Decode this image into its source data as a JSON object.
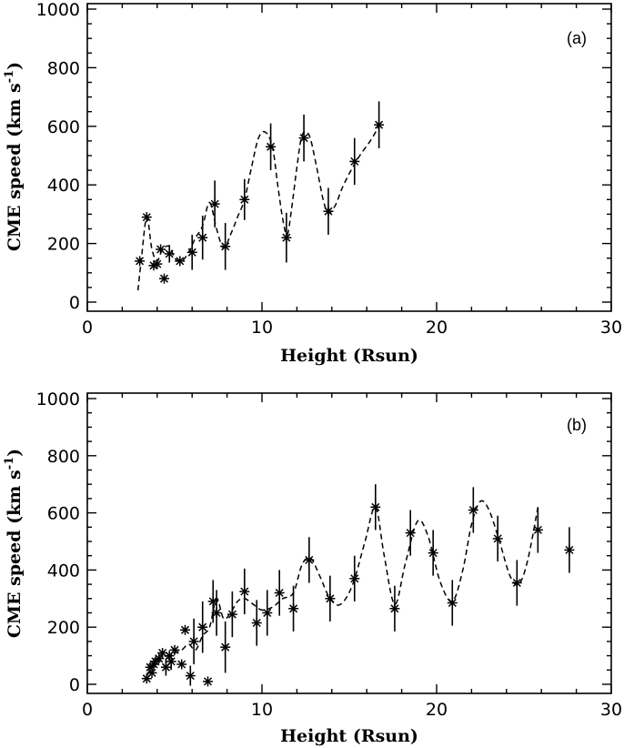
{
  "chart_data": [
    {
      "type": "scatter",
      "panel_label": "(a)",
      "xlabel": "Height (Rsun)",
      "ylabel_main": "CME speed (km s",
      "ylabel_sup": "-1",
      "ylabel_close": ")",
      "xlim": [
        0,
        30
      ],
      "ylim": [
        0,
        1000
      ],
      "xticks": [
        0,
        10,
        20,
        30
      ],
      "yticks": [
        0,
        200,
        400,
        600,
        800,
        1000
      ],
      "x": [
        3.0,
        3.4,
        3.8,
        4.0,
        4.2,
        4.4,
        4.7,
        5.3,
        6.0,
        6.6,
        7.3,
        7.9,
        9.0,
        10.5,
        11.4,
        12.4,
        13.8,
        15.3,
        16.7
      ],
      "y": [
        140,
        290,
        125,
        130,
        180,
        80,
        165,
        140,
        170,
        220,
        335,
        190,
        350,
        530,
        220,
        560,
        310,
        480,
        605
      ],
      "yerr": [
        0,
        0,
        0,
        0,
        0,
        0,
        30,
        0,
        60,
        75,
        80,
        80,
        70,
        80,
        85,
        80,
        80,
        80,
        80
      ],
      "fit_x": [
        2.9,
        3.1,
        3.4,
        3.7,
        4.0,
        4.3,
        4.7,
        5.0,
        5.4,
        5.8,
        6.2,
        6.6,
        7.0,
        7.4,
        7.8,
        8.2,
        8.6,
        9.0,
        9.4,
        9.8,
        10.2,
        10.6,
        10.9,
        11.2,
        11.45,
        11.7,
        12.0,
        12.3,
        12.7,
        13.1,
        13.5,
        13.8,
        14.2,
        14.6,
        15.1,
        15.6,
        16.2,
        16.7
      ],
      "fit_y": [
        40,
        150,
        290,
        180,
        140,
        180,
        190,
        150,
        140,
        170,
        220,
        260,
        340,
        250,
        185,
        230,
        290,
        350,
        460,
        560,
        580,
        530,
        400,
        280,
        230,
        320,
        460,
        570,
        570,
        470,
        350,
        305,
        330,
        390,
        450,
        500,
        550,
        600
      ]
    },
    {
      "type": "scatter",
      "panel_label": "(b)",
      "xlabel": "Height (Rsun)",
      "ylabel_main": "CME speed (km s",
      "ylabel_sup": "-1",
      "ylabel_close": ")",
      "xlim": [
        0,
        30
      ],
      "ylim": [
        0,
        1000
      ],
      "xticks": [
        0,
        10,
        20,
        30
      ],
      "yticks": [
        0,
        200,
        400,
        600,
        800,
        1000
      ],
      "x": [
        3.4,
        3.6,
        3.7,
        3.8,
        3.9,
        4.1,
        4.3,
        4.5,
        4.7,
        4.8,
        5.0,
        5.4,
        5.6,
        5.9,
        6.1,
        6.6,
        6.9,
        7.2,
        7.4,
        7.9,
        8.3,
        9.0,
        9.7,
        10.3,
        11.0,
        11.8,
        12.7,
        13.9,
        15.3,
        16.5,
        17.6,
        18.5,
        19.8,
        20.9,
        22.1,
        23.5,
        24.6,
        25.8,
        27.6
      ],
      "y": [
        20,
        60,
        40,
        70,
        80,
        90,
        110,
        60,
        100,
        80,
        120,
        70,
        190,
        30,
        150,
        200,
        10,
        290,
        250,
        130,
        245,
        325,
        215,
        250,
        320,
        265,
        435,
        300,
        370,
        620,
        265,
        530,
        460,
        285,
        610,
        510,
        355,
        540,
        470
      ],
      "yerr": [
        0,
        0,
        0,
        0,
        0,
        0,
        0,
        30,
        0,
        30,
        0,
        0,
        0,
        35,
        80,
        90,
        0,
        75,
        80,
        90,
        80,
        80,
        80,
        80,
        80,
        80,
        80,
        80,
        80,
        80,
        80,
        80,
        80,
        80,
        80,
        80,
        80,
        80,
        80
      ],
      "fit_x": [
        3.4,
        3.8,
        4.2,
        4.6,
        5.0,
        5.4,
        5.8,
        6.2,
        6.6,
        7.0,
        7.4,
        7.8,
        8.2,
        8.6,
        9.0,
        9.5,
        10.0,
        10.6,
        11.2,
        11.8,
        12.3,
        12.8,
        13.3,
        13.9,
        14.5,
        15.2,
        15.9,
        16.5,
        17.0,
        17.6,
        18.2,
        18.9,
        19.5,
        20.2,
        20.9,
        21.5,
        22.0,
        22.5,
        23.0,
        23.6,
        24.2,
        24.7,
        25.2,
        25.8
      ],
      "fit_y": [
        30,
        70,
        90,
        100,
        110,
        120,
        140,
        120,
        170,
        200,
        300,
        230,
        250,
        290,
        300,
        280,
        260,
        270,
        300,
        320,
        420,
        440,
        380,
        300,
        280,
        350,
        500,
        620,
        450,
        280,
        420,
        570,
        520,
        360,
        290,
        400,
        560,
        640,
        610,
        500,
        380,
        350,
        430,
        620
      ]
    }
  ]
}
